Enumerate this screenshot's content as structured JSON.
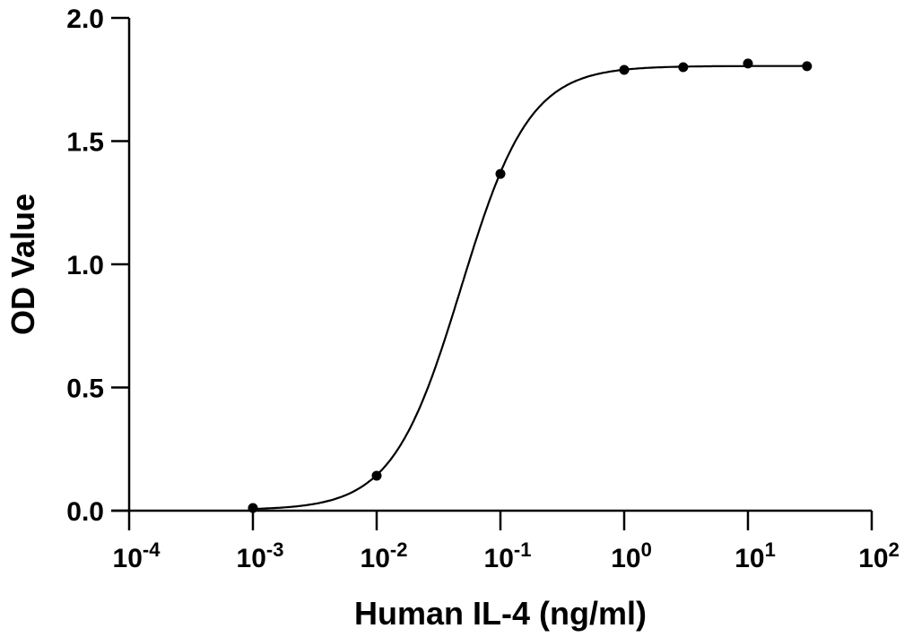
{
  "chart_data": {
    "type": "scatter",
    "title": "",
    "xlabel": "Human IL-4 (ng/ml)",
    "ylabel": "OD Value",
    "xscale": "log",
    "xlim": [
      0.0001,
      100
    ],
    "ylim": [
      0,
      2.0
    ],
    "grid": false,
    "x_ticks": [
      {
        "base": "10",
        "exp": "-4",
        "value": 0.0001
      },
      {
        "base": "10",
        "exp": "-3",
        "value": 0.001
      },
      {
        "base": "10",
        "exp": "-2",
        "value": 0.01
      },
      {
        "base": "10",
        "exp": "-1",
        "value": 0.1
      },
      {
        "base": "10",
        "exp": "0",
        "value": 1
      },
      {
        "base": "10",
        "exp": "1",
        "value": 10
      },
      {
        "base": "10",
        "exp": "2",
        "value": 100
      }
    ],
    "y_ticks": [
      {
        "label": "0.0",
        "value": 0
      },
      {
        "label": "0.5",
        "value": 0.5
      },
      {
        "label": "1.0",
        "value": 1.0
      },
      {
        "label": "1.5",
        "value": 1.5
      },
      {
        "label": "2.0",
        "value": 2.0
      }
    ],
    "series": [
      {
        "name": "Human IL-4",
        "x": [
          0.001,
          0.01,
          0.1,
          1,
          3,
          10,
          30
        ],
        "y": [
          0.011,
          0.142,
          1.367,
          1.789,
          1.8,
          1.815,
          1.804
        ]
      }
    ],
    "fit": {
      "model": "4PL",
      "bottom": 0.003,
      "top": 1.805,
      "ec50": 0.048,
      "hill": 1.57,
      "color": "#000000"
    },
    "marker_color": "#000000"
  }
}
